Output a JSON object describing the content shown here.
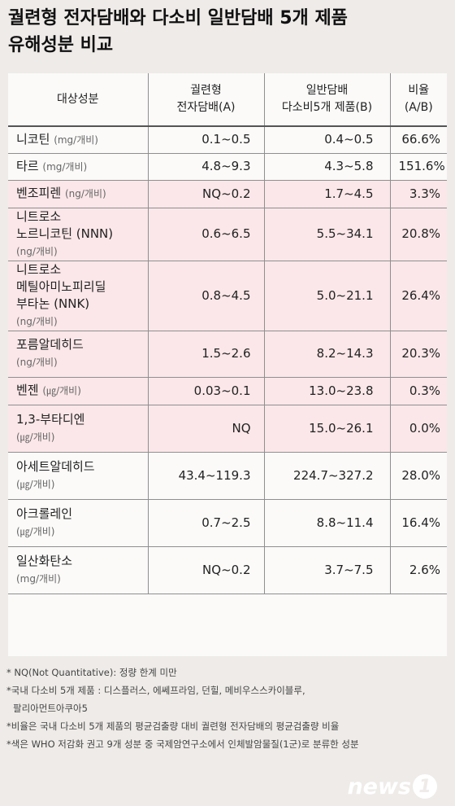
{
  "title": {
    "line1": "궐련형 전자담배와 다소비 일반담배 5개 제품",
    "line2": "유해성분 비교"
  },
  "headers": {
    "component": "대상성분",
    "a_line1": "궐련형",
    "a_line2": "전자담배(A)",
    "b_line1": "일반담배",
    "b_line2": "다소비5개 제품(B)",
    "r_line1": "비율",
    "r_line2": "(A/B)"
  },
  "chart_data": {
    "type": "table",
    "columns": [
      "대상성분",
      "궐련형 전자담배(A)",
      "일반담배 다소비5개 제품(B)",
      "비율 (A/B)"
    ],
    "rows": [
      {
        "name": [
          "니코틴"
        ],
        "unit": "(mg/개비)",
        "unit_newline": false,
        "a": "0.1~0.5",
        "b": "0.4~0.5",
        "ratio": "66.6%",
        "carcinogen": false
      },
      {
        "name": [
          "타르"
        ],
        "unit": "(mg/개비)",
        "unit_newline": false,
        "a": "4.8~9.3",
        "b": "4.3~5.8",
        "ratio": "151.6%",
        "carcinogen": false
      },
      {
        "name": [
          "벤조피렌"
        ],
        "unit": "(ng/개비)",
        "unit_newline": false,
        "a": "NQ~0.2",
        "b": "1.7~4.5",
        "ratio": "3.3%",
        "carcinogen": true
      },
      {
        "name": [
          "니트로소",
          "노르니코틴 (NNN)"
        ],
        "unit": "(ng/개비)",
        "unit_newline": true,
        "a": "0.6~6.5",
        "b": "5.5~34.1",
        "ratio": "20.8%",
        "carcinogen": true
      },
      {
        "name": [
          "니트로소",
          "메틸아미노피리딜",
          "부타논 (NNK)"
        ],
        "unit": "(ng/개비)",
        "unit_newline": true,
        "a": "0.8~4.5",
        "b": "5.0~21.1",
        "ratio": "26.4%",
        "carcinogen": true
      },
      {
        "name": [
          "포름알데히드"
        ],
        "unit": "(ng/개비)",
        "unit_newline": true,
        "a": "1.5~2.6",
        "b": "8.2~14.3",
        "ratio": "20.3%",
        "carcinogen": true
      },
      {
        "name": [
          "벤젠"
        ],
        "unit": "(㎍/개비)",
        "unit_newline": false,
        "a": "0.03~0.1",
        "b": "13.0~23.8",
        "ratio": "0.3%",
        "carcinogen": true
      },
      {
        "name": [
          "1,3-부타디엔"
        ],
        "unit": "(㎍/개비)",
        "unit_newline": true,
        "a": "NQ",
        "b": "15.0~26.1",
        "ratio": "0.0%",
        "carcinogen": true
      },
      {
        "name": [
          "아세트알데히드"
        ],
        "unit": "(㎍/개비)",
        "unit_newline": true,
        "a": "43.4~119.3",
        "b": "224.7~327.2",
        "ratio": "28.0%",
        "carcinogen": false
      },
      {
        "name": [
          "아크롤레인"
        ],
        "unit": "(㎍/개비)",
        "unit_newline": true,
        "a": "0.7~2.5",
        "b": "8.8~11.4",
        "ratio": "16.4%",
        "carcinogen": false
      },
      {
        "name": [
          "일산화탄소"
        ],
        "unit": "(mg/개비)",
        "unit_newline": true,
        "a": "NQ~0.2",
        "b": "3.7~7.5",
        "ratio": "2.6%",
        "carcinogen": false
      }
    ],
    "highlight_color": "#fbe7e9"
  },
  "notes": [
    "* NQ(Not Quantitative): 정량 한계 미만",
    "*국내 다소비 5개 제품 : 디스플러스, 에쎄프라임, 던힐, 메비우스스카이블루,",
    "  팔리아먼트아쿠아5",
    "*비율은 국내 다소비 5개 제품의 평균검출량 대비 궐련형 전자담배의 평균검출량 비율",
    "*색은 WHO 저감화 권고 9개 성분 중 국제암연구소에서 인체발암물질(1군)로 분류한 성분"
  ],
  "logo": {
    "word": "news",
    "badge": "1",
    "name": "news1-logo-icon"
  },
  "colors": {
    "background": "#eeebe8",
    "table_bg": "#fbfaf9",
    "highlight": "#fbe7e9"
  }
}
